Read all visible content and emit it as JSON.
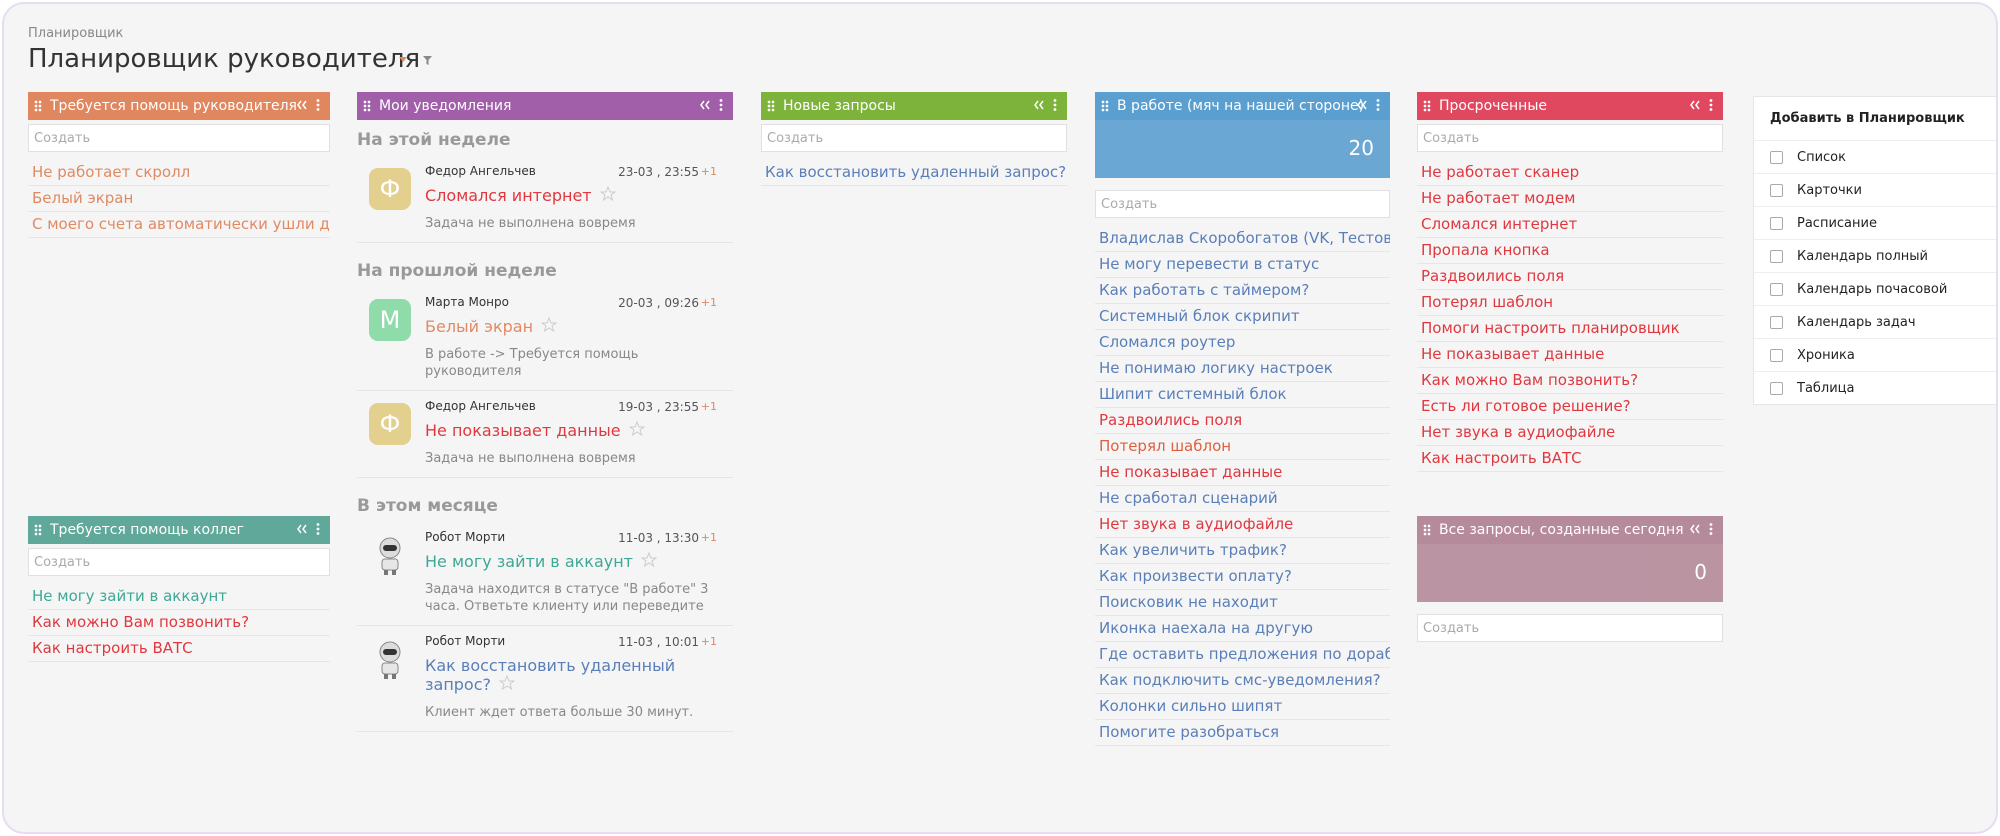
{
  "header": {
    "breadcrumb": "Планировщик",
    "title": "Планировщик руководителя"
  },
  "widgets": [
    {
      "title": "Требуется помощь руководителя",
      "color": "#e0875f",
      "create": "Создать",
      "items": [
        {
          "text": "Не работает скролл",
          "color": "#e08a62"
        },
        {
          "text": "Белый экран",
          "color": "#e08a62"
        },
        {
          "text": "С моего счета автоматически ушли де...",
          "color": "#e08a62"
        }
      ]
    },
    {
      "title": "Требуется помощь коллег",
      "color": "#5fa89a",
      "create": "Создать",
      "items": [
        {
          "text": "Не могу зайти в аккаунт",
          "color": "#3ea896"
        },
        {
          "text": "Как можно Вам позвонить?",
          "color": "#e0383e"
        },
        {
          "text": "Как настроить ВАТС",
          "color": "#e0383e"
        }
      ]
    },
    {
      "title": "Мои уведомления",
      "color": "#a05fa8",
      "groups": [
        {
          "title": "На этой неделе",
          "notes": [
            {
              "author": "Федор Ангельчев",
              "date": "23-03 , 23:55",
              "count": "+1",
              "title": "Сломался интернет",
              "title_color": "#e0383e",
              "text": "Задача не выполнена вовремя",
              "avatar": "Ф",
              "avatar_color": "#e3d08e"
            }
          ]
        },
        {
          "title": "На прошлой неделе",
          "notes": [
            {
              "author": "Марта Монро",
              "date": "20-03 , 09:26",
              "count": "+1",
              "title": "Белый экран",
              "title_color": "#e08a62",
              "text": "В работе -> Требуется помощь руководителя",
              "avatar": "М",
              "avatar_color": "#8fdcaa"
            },
            {
              "author": "Федор Ангельчев",
              "date": "19-03 , 23:55",
              "count": "+1",
              "title": "Не показывает данные",
              "title_color": "#e0383e",
              "text": "Задача не выполнена вовремя",
              "avatar": "Ф",
              "avatar_color": "#e3d08e"
            }
          ]
        },
        {
          "title": "В этом месяце",
          "notes": [
            {
              "author": "Робот Морти",
              "date": "11-03 , 13:30",
              "count": "+1",
              "title": "Не могу зайти в аккаунт",
              "title_color": "#3ea896",
              "text": "Задача находится в статусе \"В работе\" 3 часа. Ответьте клиенту или переведите"
            },
            {
              "author": "Робот Морти",
              "date": "11-03 , 10:01",
              "count": "+1",
              "title": "Как восстановить удаленный запрос?",
              "title_color": "#5a7fb8",
              "text": "Клиент ждет ответа больше 30 минут."
            }
          ]
        }
      ]
    },
    {
      "title": "Новые запросы",
      "color": "#7db33a",
      "create": "Создать",
      "items": [
        {
          "text": "Как восстановить удаленный запрос?",
          "color": "#5a7fb8"
        }
      ]
    },
    {
      "title": "В работе (мяч на нашей стороне)",
      "color": "#5b9fd0",
      "count": 20,
      "create": "Создать",
      "items": [
        {
          "text": "Владислав Скоробогатов (VK, Тестов...",
          "color": "#5a7fb8"
        },
        {
          "text": "Не могу перевести в статус",
          "color": "#5a7fb8"
        },
        {
          "text": "Как работать с таймером?",
          "color": "#5a7fb8"
        },
        {
          "text": "Системный блок скрипит",
          "color": "#5a7fb8"
        },
        {
          "text": "Сломался роутер",
          "color": "#5a7fb8"
        },
        {
          "text": "Не понимаю логику настроек",
          "color": "#5a7fb8"
        },
        {
          "text": "Шипит системный блок",
          "color": "#5a7fb8"
        },
        {
          "text": "Раздвоились поля",
          "color": "#e0383e"
        },
        {
          "text": "Потерял шаблон",
          "color": "#e0603e"
        },
        {
          "text": "Не показывает данные",
          "color": "#e0383e"
        },
        {
          "text": "Не сработал сценарий",
          "color": "#5a7fb8"
        },
        {
          "text": "Нет звука в аудиофайле",
          "color": "#e0383e"
        },
        {
          "text": "Как увеличить трафик?",
          "color": "#5a7fb8"
        },
        {
          "text": "Как произвести оплату?",
          "color": "#5a7fb8"
        },
        {
          "text": "Поисковик не находит",
          "color": "#5a7fb8"
        },
        {
          "text": "Иконка наехала на другую",
          "color": "#5a7fb8"
        },
        {
          "text": "Где оставить предложения по доработ...",
          "color": "#5a7fb8"
        },
        {
          "text": "Как подключить смс-уведомления?",
          "color": "#5a7fb8"
        },
        {
          "text": "Колонки сильно шипят",
          "color": "#5a7fb8"
        },
        {
          "text": "Помогите разобраться",
          "color": "#5a7fb8"
        }
      ]
    },
    {
      "title": "Просроченные",
      "color": "#e0485f",
      "create": "Создать",
      "items": [
        {
          "text": "Не работает сканер",
          "color": "#e0383e"
        },
        {
          "text": "Не работает модем",
          "color": "#e0383e"
        },
        {
          "text": "Сломался интернет",
          "color": "#e0383e"
        },
        {
          "text": "Пропала кнопка",
          "color": "#e0383e"
        },
        {
          "text": "Раздвоились поля",
          "color": "#e0383e"
        },
        {
          "text": "Потерял шаблон",
          "color": "#e0383e"
        },
        {
          "text": "Помоги настроить планировщик",
          "color": "#e0383e"
        },
        {
          "text": "Не показывает данные",
          "color": "#e0383e"
        },
        {
          "text": "Как можно Вам позвонить?",
          "color": "#e0383e"
        },
        {
          "text": "Есть ли готовое решение?",
          "color": "#e0383e"
        },
        {
          "text": "Нет звука в аудиофайле",
          "color": "#e0383e"
        },
        {
          "text": "Как настроить ВАТС",
          "color": "#e0383e"
        }
      ]
    },
    {
      "title": "Все запросы, созданные сегодня",
      "color": "#b58a9a",
      "count": 0,
      "create": "Создать",
      "items": []
    }
  ],
  "sidebar": {
    "title": "Добавить в Планировщик",
    "items": [
      "Список",
      "Карточки",
      "Расписание",
      "Календарь полный",
      "Календарь почасовой",
      "Календарь задач",
      "Хроника",
      "Таблица"
    ]
  }
}
